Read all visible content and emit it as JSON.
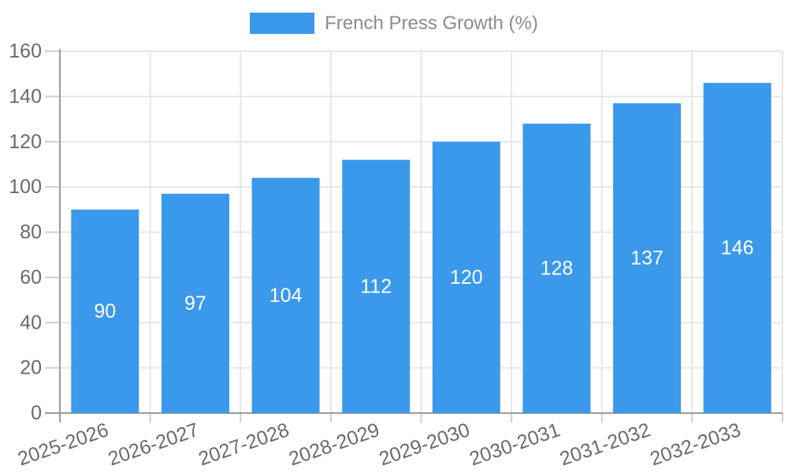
{
  "chart_data": {
    "type": "bar",
    "title": "",
    "legend_position": "top",
    "legend_entries": [
      "French Press Growth (%)"
    ],
    "categories": [
      "2025-2026",
      "2026-2027",
      "2027-2028",
      "2028-2029",
      "2029-2030",
      "2030-2031",
      "2031-2032",
      "2032-2033"
    ],
    "series": [
      {
        "name": "French Press Growth (%)",
        "values": [
          90,
          97,
          104,
          112,
          120,
          128,
          137,
          146
        ],
        "color": "#3B99EC"
      }
    ],
    "value_labels_visible": true,
    "xlabel": "",
    "ylabel": "",
    "ylim": [
      0,
      160
    ],
    "ytick_step": 20,
    "ytick_labels": [
      "0",
      "20",
      "40",
      "60",
      "80",
      "100",
      "120",
      "140",
      "160"
    ],
    "grid": true,
    "colors": {
      "bar": "#3B99EC",
      "value_label": "#FFFFFF",
      "tick_label": "#6A6A6A",
      "legend_text": "#8B8B8B",
      "gridline": "#E6E6E6",
      "tick_mark": "#CFCFCF",
      "axis_line": "#9B9B9B",
      "background": "#FFFFFF"
    }
  }
}
